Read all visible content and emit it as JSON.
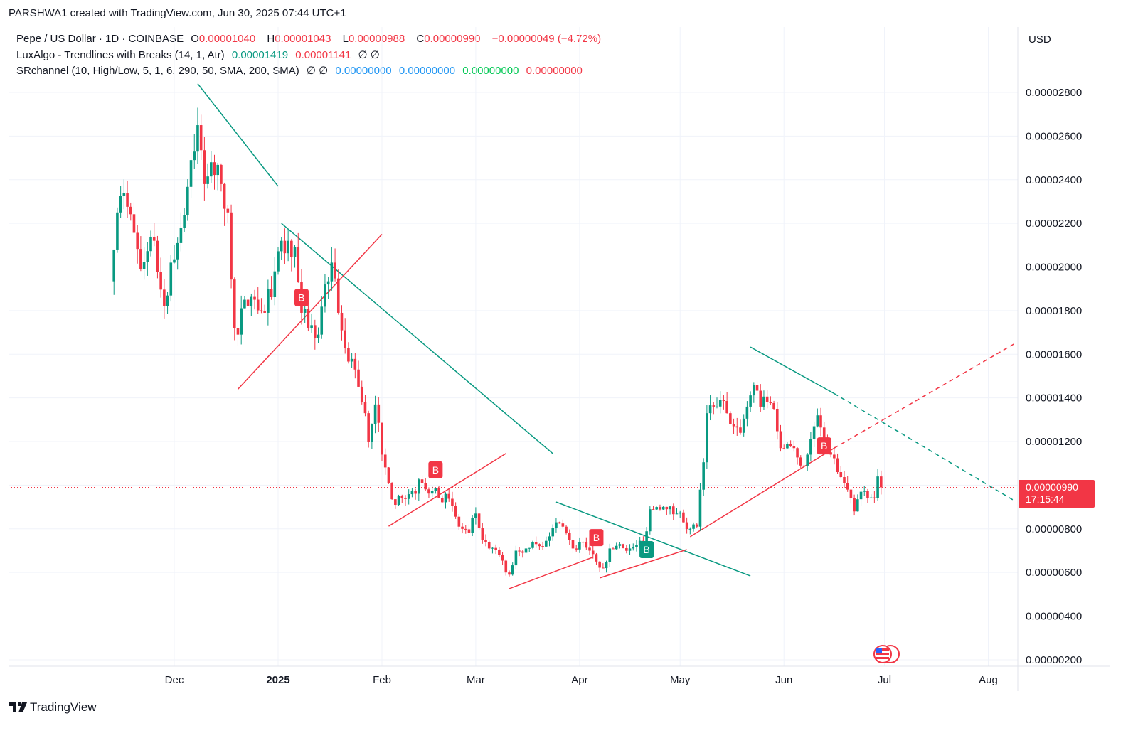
{
  "credit": "PARSHWA1 created with TradingView.com, Jun 30, 2025 07:44 UTC+1",
  "legend": {
    "symbol": "Pepe / US Dollar · 1D · COINBASE",
    "o_label": "O",
    "o": "0.00001040",
    "h_label": "H",
    "h": "0.00001043",
    "l_label": "L",
    "l": "0.00000988",
    "c_label": "C",
    "c": "0.00000990",
    "change": "−0.00000049 (−4.72%)",
    "luxalgo": "LuxAlgo - Trendlines with Breaks (14, 1, Atr)",
    "lux_v1": "0.00001419",
    "lux_v2": "0.00001141",
    "lux_na": "∅ ∅",
    "srchannel": "SRchannel (10, High/Low, 5, 1, 6, 290, 50, SMA, 200, SMA)",
    "sr_na": "∅ ∅",
    "sr_v1": "0.00000000",
    "sr_v2": "0.00000000",
    "sr_v3": "0.00000000",
    "sr_v4": "0.00000000"
  },
  "currency": "USD",
  "last_price": {
    "value": "0.00000990",
    "countdown": "17:15:44"
  },
  "brand": "TradingView",
  "colors": {
    "up": "#089981",
    "down": "#f23645",
    "grid": "#f0f3fa",
    "support": "#f23645",
    "resistance": "#089981"
  },
  "icons": {
    "events": "us-flag-events-icon",
    "logo": "tradingview-logo-icon"
  },
  "chart_data": {
    "type": "candlestick",
    "ylim": [
      1.5e-06,
      3.12e-05
    ],
    "xlim": [
      "2024-11-04",
      "2025-08-09"
    ],
    "grid": true,
    "y_ticks": [
      "0.00002800",
      "0.00002600",
      "0.00002400",
      "0.00002200",
      "0.00002000",
      "0.00001800",
      "0.00001600",
      "0.00001400",
      "0.00001200",
      "0.00001000",
      "0.00000800",
      "0.00000600",
      "0.00000400",
      "0.00000200"
    ],
    "x_ticks": [
      {
        "label": "Dec",
        "date": "2024-12-01",
        "bold": false
      },
      {
        "label": "2025",
        "date": "2025-01-01",
        "bold": true
      },
      {
        "label": "Feb",
        "date": "2025-02-01",
        "bold": false
      },
      {
        "label": "Mar",
        "date": "2025-03-01",
        "bold": false
      },
      {
        "label": "Apr",
        "date": "2025-04-01",
        "bold": false
      },
      {
        "label": "May",
        "date": "2025-05-01",
        "bold": false
      },
      {
        "label": "Jun",
        "date": "2025-06-01",
        "bold": false
      },
      {
        "label": "Jul",
        "date": "2025-07-01",
        "bold": false
      },
      {
        "label": "Aug",
        "date": "2025-08-01",
        "bold": false
      }
    ],
    "close_path": [
      [
        "2024-11-13",
        2.08e-05
      ],
      [
        "2024-11-14",
        2.25e-05
      ],
      [
        "2024-11-16",
        2.34e-05
      ],
      [
        "2024-11-21",
        1.99e-05
      ],
      [
        "2024-11-25",
        2.12e-05
      ],
      [
        "2024-11-28",
        1.82e-05
      ],
      [
        "2024-11-30",
        2.02e-05
      ],
      [
        "2024-12-03",
        2.18e-05
      ],
      [
        "2024-12-06",
        2.49e-05
      ],
      [
        "2024-12-08",
        2.65e-05
      ],
      [
        "2024-12-10",
        2.38e-05
      ],
      [
        "2024-12-12",
        2.48e-05
      ],
      [
        "2024-12-15",
        2.38e-05
      ],
      [
        "2024-12-17",
        2.25e-05
      ],
      [
        "2024-12-19",
        1.72e-05
      ],
      [
        "2024-12-20",
        1.69e-05
      ],
      [
        "2024-12-22",
        1.85e-05
      ],
      [
        "2024-12-25",
        1.85e-05
      ],
      [
        "2024-12-28",
        1.79e-05
      ],
      [
        "2024-12-31",
        1.98e-05
      ],
      [
        "2025-01-02",
        2.12e-05
      ],
      [
        "2025-01-04",
        2.12e-05
      ],
      [
        "2025-01-06",
        2.09e-05
      ],
      [
        "2025-01-07",
        1.93e-05
      ],
      [
        "2025-01-08",
        1.79e-05
      ],
      [
        "2025-01-10",
        1.72e-05
      ],
      [
        "2025-01-13",
        1.69e-05
      ],
      [
        "2025-01-15",
        1.92e-05
      ],
      [
        "2025-01-17",
        2.02e-05
      ],
      [
        "2025-01-19",
        1.79e-05
      ],
      [
        "2025-01-21",
        1.63e-05
      ],
      [
        "2025-01-24",
        1.53e-05
      ],
      [
        "2025-01-27",
        1.33e-05
      ],
      [
        "2025-01-28",
        1.2e-05
      ],
      [
        "2025-01-30",
        1.37e-05
      ],
      [
        "2025-02-01",
        1.14e-05
      ],
      [
        "2025-02-03",
        1.01e-05
      ],
      [
        "2025-02-05",
        9.1e-06
      ],
      [
        "2025-02-07",
        9.4e-06
      ],
      [
        "2025-02-10",
        9.75e-06
      ],
      [
        "2025-02-13",
        1.01e-05
      ],
      [
        "2025-02-16",
        9.75e-06
      ],
      [
        "2025-02-18",
        9.4e-06
      ],
      [
        "2025-02-20",
        9.6e-06
      ],
      [
        "2025-02-24",
        8.1e-06
      ],
      [
        "2025-02-27",
        7.8e-06
      ],
      [
        "2025-03-01",
        8.7e-06
      ],
      [
        "2025-03-03",
        7.5e-06
      ],
      [
        "2025-03-05",
        7.1e-06
      ],
      [
        "2025-03-08",
        6.8e-06
      ],
      [
        "2025-03-10",
        6e-06
      ],
      [
        "2025-03-11",
        5.9e-06
      ],
      [
        "2025-03-13",
        7e-06
      ],
      [
        "2025-03-16",
        7.1e-06
      ],
      [
        "2025-03-19",
        7.3e-06
      ],
      [
        "2025-03-22",
        7.45e-06
      ],
      [
        "2025-03-25",
        8.3e-06
      ],
      [
        "2025-03-27",
        8.1e-06
      ],
      [
        "2025-03-30",
        7.1e-06
      ],
      [
        "2025-04-01",
        7.4e-06
      ],
      [
        "2025-04-04",
        7e-06
      ],
      [
        "2025-04-06",
        6.5e-06
      ],
      [
        "2025-04-08",
        6.2e-06
      ],
      [
        "2025-04-10",
        7.1e-06
      ],
      [
        "2025-04-13",
        7.3e-06
      ],
      [
        "2025-04-16",
        7.1e-06
      ],
      [
        "2025-04-20",
        7.3e-06
      ],
      [
        "2025-04-22",
        8.9e-06
      ],
      [
        "2025-04-24",
        9e-06
      ],
      [
        "2025-04-27",
        8.9e-06
      ],
      [
        "2025-04-30",
        8.7e-06
      ],
      [
        "2025-05-02",
        8.3e-06
      ],
      [
        "2025-05-04",
        8e-06
      ],
      [
        "2025-05-06",
        8.1e-06
      ],
      [
        "2025-05-08",
        1.105e-05
      ],
      [
        "2025-05-09",
        1.33e-05
      ],
      [
        "2025-05-11",
        1.36e-05
      ],
      [
        "2025-05-13",
        1.39e-05
      ],
      [
        "2025-05-15",
        1.33e-05
      ],
      [
        "2025-05-17",
        1.27e-05
      ],
      [
        "2025-05-19",
        1.24e-05
      ],
      [
        "2025-05-21",
        1.36e-05
      ],
      [
        "2025-05-23",
        1.46e-05
      ],
      [
        "2025-05-25",
        1.36e-05
      ],
      [
        "2025-05-27",
        1.38e-05
      ],
      [
        "2025-05-29",
        1.35e-05
      ],
      [
        "2025-05-31",
        1.17e-05
      ],
      [
        "2025-06-02",
        1.19e-05
      ],
      [
        "2025-06-04",
        1.17e-05
      ],
      [
        "2025-06-06",
        1.09e-05
      ],
      [
        "2025-06-08",
        1.14e-05
      ],
      [
        "2025-06-10",
        1.27e-05
      ],
      [
        "2025-06-11",
        1.32e-05
      ],
      [
        "2025-06-13",
        1.19e-05
      ],
      [
        "2025-06-15",
        1.14e-05
      ],
      [
        "2025-06-17",
        1.06e-05
      ],
      [
        "2025-06-19",
        1.01e-05
      ],
      [
        "2025-06-21",
        9.4e-06
      ],
      [
        "2025-06-22",
        8.8e-06
      ],
      [
        "2025-06-24",
        9.7e-06
      ],
      [
        "2025-06-26",
        9.4e-06
      ],
      [
        "2025-06-28",
        9.4e-06
      ],
      [
        "2025-06-29",
        1.04e-05
      ],
      [
        "2025-06-30",
        9.9e-06
      ]
    ],
    "trendlines": [
      {
        "kind": "resistance",
        "from": [
          "2024-12-08",
          2.84e-05
        ],
        "to": [
          "2025-01-01",
          2.37e-05
        ]
      },
      {
        "kind": "resistance",
        "from": [
          "2025-01-02",
          2.2e-05
        ],
        "to": [
          "2025-03-24",
          1.145e-05
        ]
      },
      {
        "kind": "resistance",
        "from": [
          "2025-03-25",
          9.23e-06
        ],
        "to": [
          "2025-05-22",
          5.84e-06
        ]
      },
      {
        "kind": "resistance",
        "from": [
          "2025-05-22",
          1.633e-05
        ],
        "to": [
          "2025-06-16",
          1.42e-05
        ],
        "extend_to": [
          "2025-08-09",
          9.27e-06
        ]
      },
      {
        "kind": "support",
        "from": [
          "2024-12-20",
          1.44e-05
        ],
        "to": [
          "2025-02-01",
          2.15e-05
        ]
      },
      {
        "kind": "support",
        "from": [
          "2025-02-03",
          8.12e-06
        ],
        "to": [
          "2025-03-10",
          1.145e-05
        ]
      },
      {
        "kind": "support",
        "from": [
          "2025-03-11",
          5.26e-06
        ],
        "to": [
          "2025-04-05",
          6.7e-06
        ]
      },
      {
        "kind": "support",
        "from": [
          "2025-04-07",
          5.75e-06
        ],
        "to": [
          "2025-05-03",
          7.05e-06
        ]
      },
      {
        "kind": "support",
        "from": [
          "2025-05-04",
          7.64e-06
        ],
        "to": [
          "2025-06-16",
          1.17e-05
        ],
        "extend_to": [
          "2025-08-09",
          1.65e-05
        ]
      }
    ],
    "break_labels": [
      {
        "text": "B",
        "kind": "down",
        "date": "2025-01-08",
        "price": 1.86e-05
      },
      {
        "text": "B",
        "kind": "down",
        "date": "2025-02-17",
        "price": 1.07e-05
      },
      {
        "text": "B",
        "kind": "down",
        "date": "2025-04-06",
        "price": 7.6e-06
      },
      {
        "text": "B",
        "kind": "up",
        "date": "2025-04-21",
        "price": 7.05e-06
      },
      {
        "text": "B",
        "kind": "down",
        "date": "2025-06-13",
        "price": 1.18e-05
      }
    ],
    "last_price": 9.9e-06
  }
}
